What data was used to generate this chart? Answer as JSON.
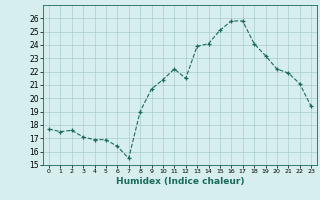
{
  "x": [
    0,
    1,
    2,
    3,
    4,
    5,
    6,
    7,
    8,
    9,
    10,
    11,
    12,
    13,
    14,
    15,
    16,
    17,
    18,
    19,
    20,
    21,
    22,
    23
  ],
  "y": [
    17.7,
    17.5,
    17.6,
    17.1,
    16.9,
    16.9,
    16.4,
    15.5,
    19.0,
    20.7,
    21.4,
    22.2,
    21.5,
    23.9,
    24.1,
    25.1,
    25.8,
    25.8,
    24.1,
    23.2,
    22.2,
    21.9,
    21.1,
    19.4
  ],
  "xlim": [
    -0.5,
    23.5
  ],
  "ylim": [
    15,
    27
  ],
  "yticks": [
    15,
    16,
    17,
    18,
    19,
    20,
    21,
    22,
    23,
    24,
    25,
    26
  ],
  "xticks": [
    0,
    1,
    2,
    3,
    4,
    5,
    6,
    7,
    8,
    9,
    10,
    11,
    12,
    13,
    14,
    15,
    16,
    17,
    18,
    19,
    20,
    21,
    22,
    23
  ],
  "xlabel": "Humidex (Indice chaleur)",
  "line_color": "#1a6b5a",
  "marker": "+",
  "bg_color": "#d6eeee",
  "grid_color": "#aacccc"
}
